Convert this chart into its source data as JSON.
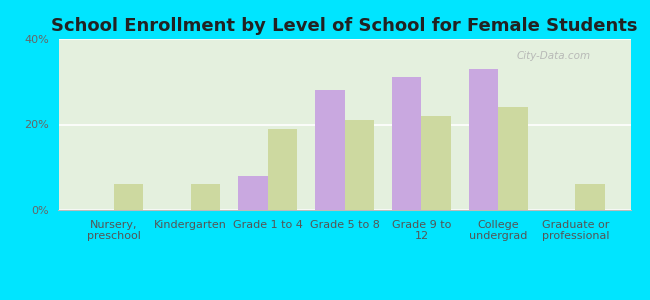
{
  "title": "School Enrollment by Level of School for Female Students",
  "categories": [
    "Nursery,\npreschool",
    "Kindergarten",
    "Grade 1 to 4",
    "Grade 5 to 8",
    "Grade 9 to\n12",
    "College\nundergrad",
    "Graduate or\nprofessional"
  ],
  "wheeler": [
    0,
    0,
    8,
    28,
    31,
    33,
    0
  ],
  "wisconsin": [
    6,
    6,
    19,
    21,
    22,
    24,
    6
  ],
  "wheeler_color": "#c9a8e0",
  "wisconsin_color": "#cdd9a0",
  "background_color": "#00e5ff",
  "plot_bg_color": "#e4f0de",
  "ylim": [
    0,
    40
  ],
  "yticks": [
    0,
    20,
    40
  ],
  "ytick_labels": [
    "0%",
    "20%",
    "40%"
  ],
  "title_fontsize": 13,
  "tick_fontsize": 8,
  "legend_fontsize": 9,
  "bar_width": 0.38,
  "watermark": "City-Data.com"
}
